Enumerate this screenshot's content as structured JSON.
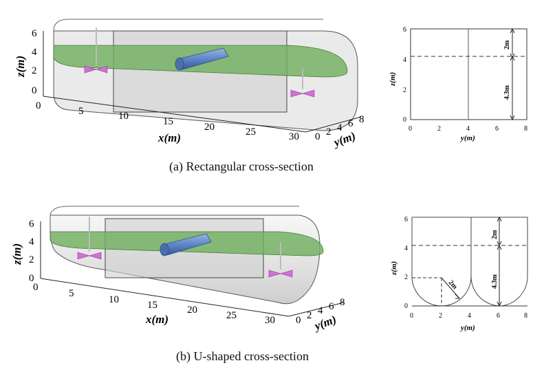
{
  "panel_a": {
    "caption": "(a)  Rectangular cross-section",
    "iso": {
      "x_label": "x(m)",
      "y_label": "y(m)",
      "z_label": "z(m)",
      "x_ticks": [
        "0",
        "5",
        "10",
        "15",
        "20",
        "25",
        "30"
      ],
      "y_ticks": [
        "0",
        "2",
        "4",
        "6",
        "8"
      ],
      "z_ticks": [
        "0",
        "2",
        "4",
        "6"
      ]
    },
    "section": {
      "x_label": "y(m)",
      "y_label": "z(m)",
      "x_ticks": [
        "0",
        "2",
        "4",
        "6",
        "8"
      ],
      "y_ticks": [
        "0",
        "2",
        "4",
        "6"
      ],
      "dim_top": "2m",
      "dim_bottom": "4.3m"
    }
  },
  "panel_b": {
    "caption": "(b)  U-shaped cross-section",
    "iso": {
      "x_label": "x(m)",
      "y_label": "y(m)",
      "z_label": "z(m)",
      "x_ticks": [
        "0",
        "5",
        "10",
        "15",
        "20",
        "25",
        "30"
      ],
      "y_ticks": [
        "0",
        "2",
        "4",
        "6",
        "8"
      ],
      "z_ticks": [
        "0",
        "2",
        "4",
        "6"
      ]
    },
    "section": {
      "x_label": "y(m)",
      "y_label": "z(m)",
      "x_ticks": [
        "0",
        "2",
        "4",
        "6",
        "8"
      ],
      "y_ticks": [
        "0",
        "2",
        "4",
        "6"
      ],
      "dim_top": "2m",
      "dim_bottom": "4.3m",
      "dim_radius": "2m"
    }
  },
  "colors": {
    "water": "#6fae5e",
    "tank": "#d9d9d9",
    "pipe": "#5f86c7",
    "propeller": "#d36fd9"
  }
}
